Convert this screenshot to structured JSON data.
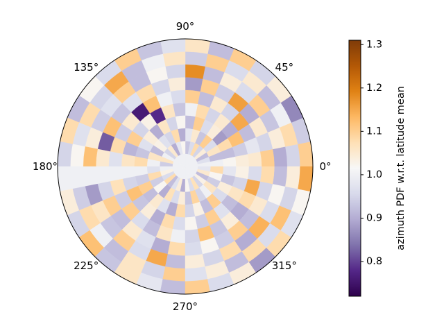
{
  "chart_data": {
    "type": "heatmap",
    "projection": "polar",
    "title": "",
    "angular_ticks": [
      {
        "angle": 0,
        "label": "0°"
      },
      {
        "angle": 45,
        "label": "45°"
      },
      {
        "angle": 90,
        "label": "90°"
      },
      {
        "angle": 135,
        "label": "135°"
      },
      {
        "angle": 180,
        "label": "180°"
      },
      {
        "angle": 225,
        "label": "225°"
      },
      {
        "angle": 270,
        "label": "270°"
      },
      {
        "angle": 315,
        "label": "315°"
      }
    ],
    "radial_ring_count": 10,
    "sector_count": 32,
    "colormap": "PuOr_r",
    "colorbar": {
      "label": "azimuth PDF w.r.t. latitude mean",
      "vmin": 0.72,
      "vmax": 1.31,
      "ticks": [
        {
          "value": 0.8,
          "label": "0.8"
        },
        {
          "value": 0.9,
          "label": "0.9"
        },
        {
          "value": 1.0,
          "label": "1.0"
        },
        {
          "value": 1.1,
          "label": "1.1"
        },
        {
          "value": 1.2,
          "label": "1.2"
        },
        {
          "value": 1.3,
          "label": "1.3"
        }
      ]
    },
    "grid": false,
    "values": [
      [
        1.0,
        1.0,
        1.0,
        1.0,
        1.0,
        1.0,
        1.0,
        1.0,
        1.0,
        1.0,
        1.0,
        1.0,
        1.0,
        1.0,
        1.0,
        1.0,
        1.0,
        1.0,
        1.0,
        1.0,
        1.0,
        1.0,
        1.0,
        1.0,
        1.0,
        1.0,
        1.0,
        1.0,
        1.0,
        1.0,
        1.0,
        1.0
      ],
      [
        1.0,
        0.97,
        0.92,
        1.04,
        0.95,
        1.08,
        0.96,
        0.93,
        1.02,
        0.98,
        0.9,
        1.05,
        0.95,
        1.0,
        1.06,
        0.94,
        1.0,
        1.03,
        0.96,
        1.08,
        0.92,
        0.97,
        1.04,
        0.9,
        1.02,
        0.96,
        1.07,
        0.95,
        1.03,
        0.92,
        1.05,
        0.98
      ],
      [
        1.0,
        0.92,
        1.06,
        0.96,
        1.1,
        0.93,
        1.05,
        0.98,
        0.9,
        1.08,
        0.95,
        0.97,
        1.03,
        0.92,
        1.06,
        1.0,
        0.97,
        1.08,
        0.94,
        1.02,
        0.9,
        1.07,
        0.96,
        1.04,
        0.93,
        1.09,
        0.95,
        1.0,
        1.06,
        0.94,
        1.02,
        1.08
      ],
      [
        1.02,
        0.92,
        1.08,
        0.88,
        1.04,
        0.96,
        1.1,
        0.92,
        1.02,
        0.95,
        1.06,
        0.9,
        1.04,
        0.97,
        0.93,
        1.08,
        1.0,
        0.94,
        1.1,
        0.92,
        1.05,
        0.97,
        0.9,
        1.08,
        0.95,
        1.03,
        0.92,
        1.1,
        0.96,
        1.04,
        0.93,
        0.98
      ],
      [
        1.04,
        0.94,
        1.12,
        0.9,
        1.05,
        0.95,
        1.08,
        1.0,
        0.93,
        1.06,
        0.78,
        1.03,
        0.95,
        1.1,
        0.91,
        1.06,
        1.0,
        0.95,
        1.12,
        0.93,
        1.04,
        0.9,
        1.08,
        0.96,
        1.02,
        0.94,
        1.1,
        0.97,
        0.92,
        1.06,
        0.95,
        1.03
      ],
      [
        1.05,
        0.98,
        0.92,
        1.15,
        0.95,
        1.05,
        0.92,
        1.1,
        0.96,
        1.0,
        1.12,
        0.76,
        1.05,
        0.94,
        1.08,
        0.97,
        1.0,
        1.07,
        0.94,
        1.1,
        0.96,
        0.92,
        1.06,
        1.0,
        0.95,
        1.12,
        0.93,
        1.04,
        0.9,
        1.08,
        1.15,
        0.96
      ],
      [
        1.1,
        0.95,
        1.05,
        0.9,
        1.16,
        0.94,
        1.1,
        0.88,
        1.04,
        0.95,
        1.08,
        0.97,
        0.93,
        1.12,
        0.82,
        1.05,
        1.0,
        0.95,
        1.1,
        0.92,
        1.05,
        0.97,
        0.9,
        1.08,
        0.96,
        1.02,
        0.94,
        1.1,
        0.92,
        1.05,
        0.95,
        1.08
      ],
      [
        0.9,
        1.04,
        0.93,
        1.1,
        0.96,
        1.04,
        0.92,
        1.18,
        0.95,
        1.02,
        0.92,
        1.1,
        0.97,
        0.94,
        1.04,
        1.12,
        1.0,
        0.88,
        1.06,
        0.93,
        1.1,
        0.96,
        1.15,
        0.92,
        1.04,
        0.95,
        1.08,
        0.9,
        1.14,
        0.96,
        1.02,
        0.92
      ],
      [
        0.95,
        1.08,
        1.0,
        0.92,
        1.05,
        0.96,
        1.1,
        0.94,
        1.06,
        1.0,
        0.92,
        1.15,
        0.95,
        1.08,
        0.97,
        1.02,
        1.0,
        0.94,
        1.08,
        1.0,
        0.92,
        1.06,
        0.95,
        1.1,
        0.97,
        1.04,
        0.92,
        1.08,
        0.96,
        1.12,
        0.95,
        1.04
      ],
      [
        1.1,
        0.94,
        0.86,
        1.04,
        0.95,
        1.1,
        0.92,
        1.06,
        0.97,
        0.93,
        1.1,
        0.96,
        1.02,
        0.92,
        1.08,
        0.95,
        1.0,
        1.04,
        0.95,
        1.12,
        0.93,
        1.06,
        0.98,
        0.92,
        1.1,
        0.96,
        1.04,
        0.88,
        1.08,
        0.97,
        1.02,
        1.15
      ]
    ]
  }
}
